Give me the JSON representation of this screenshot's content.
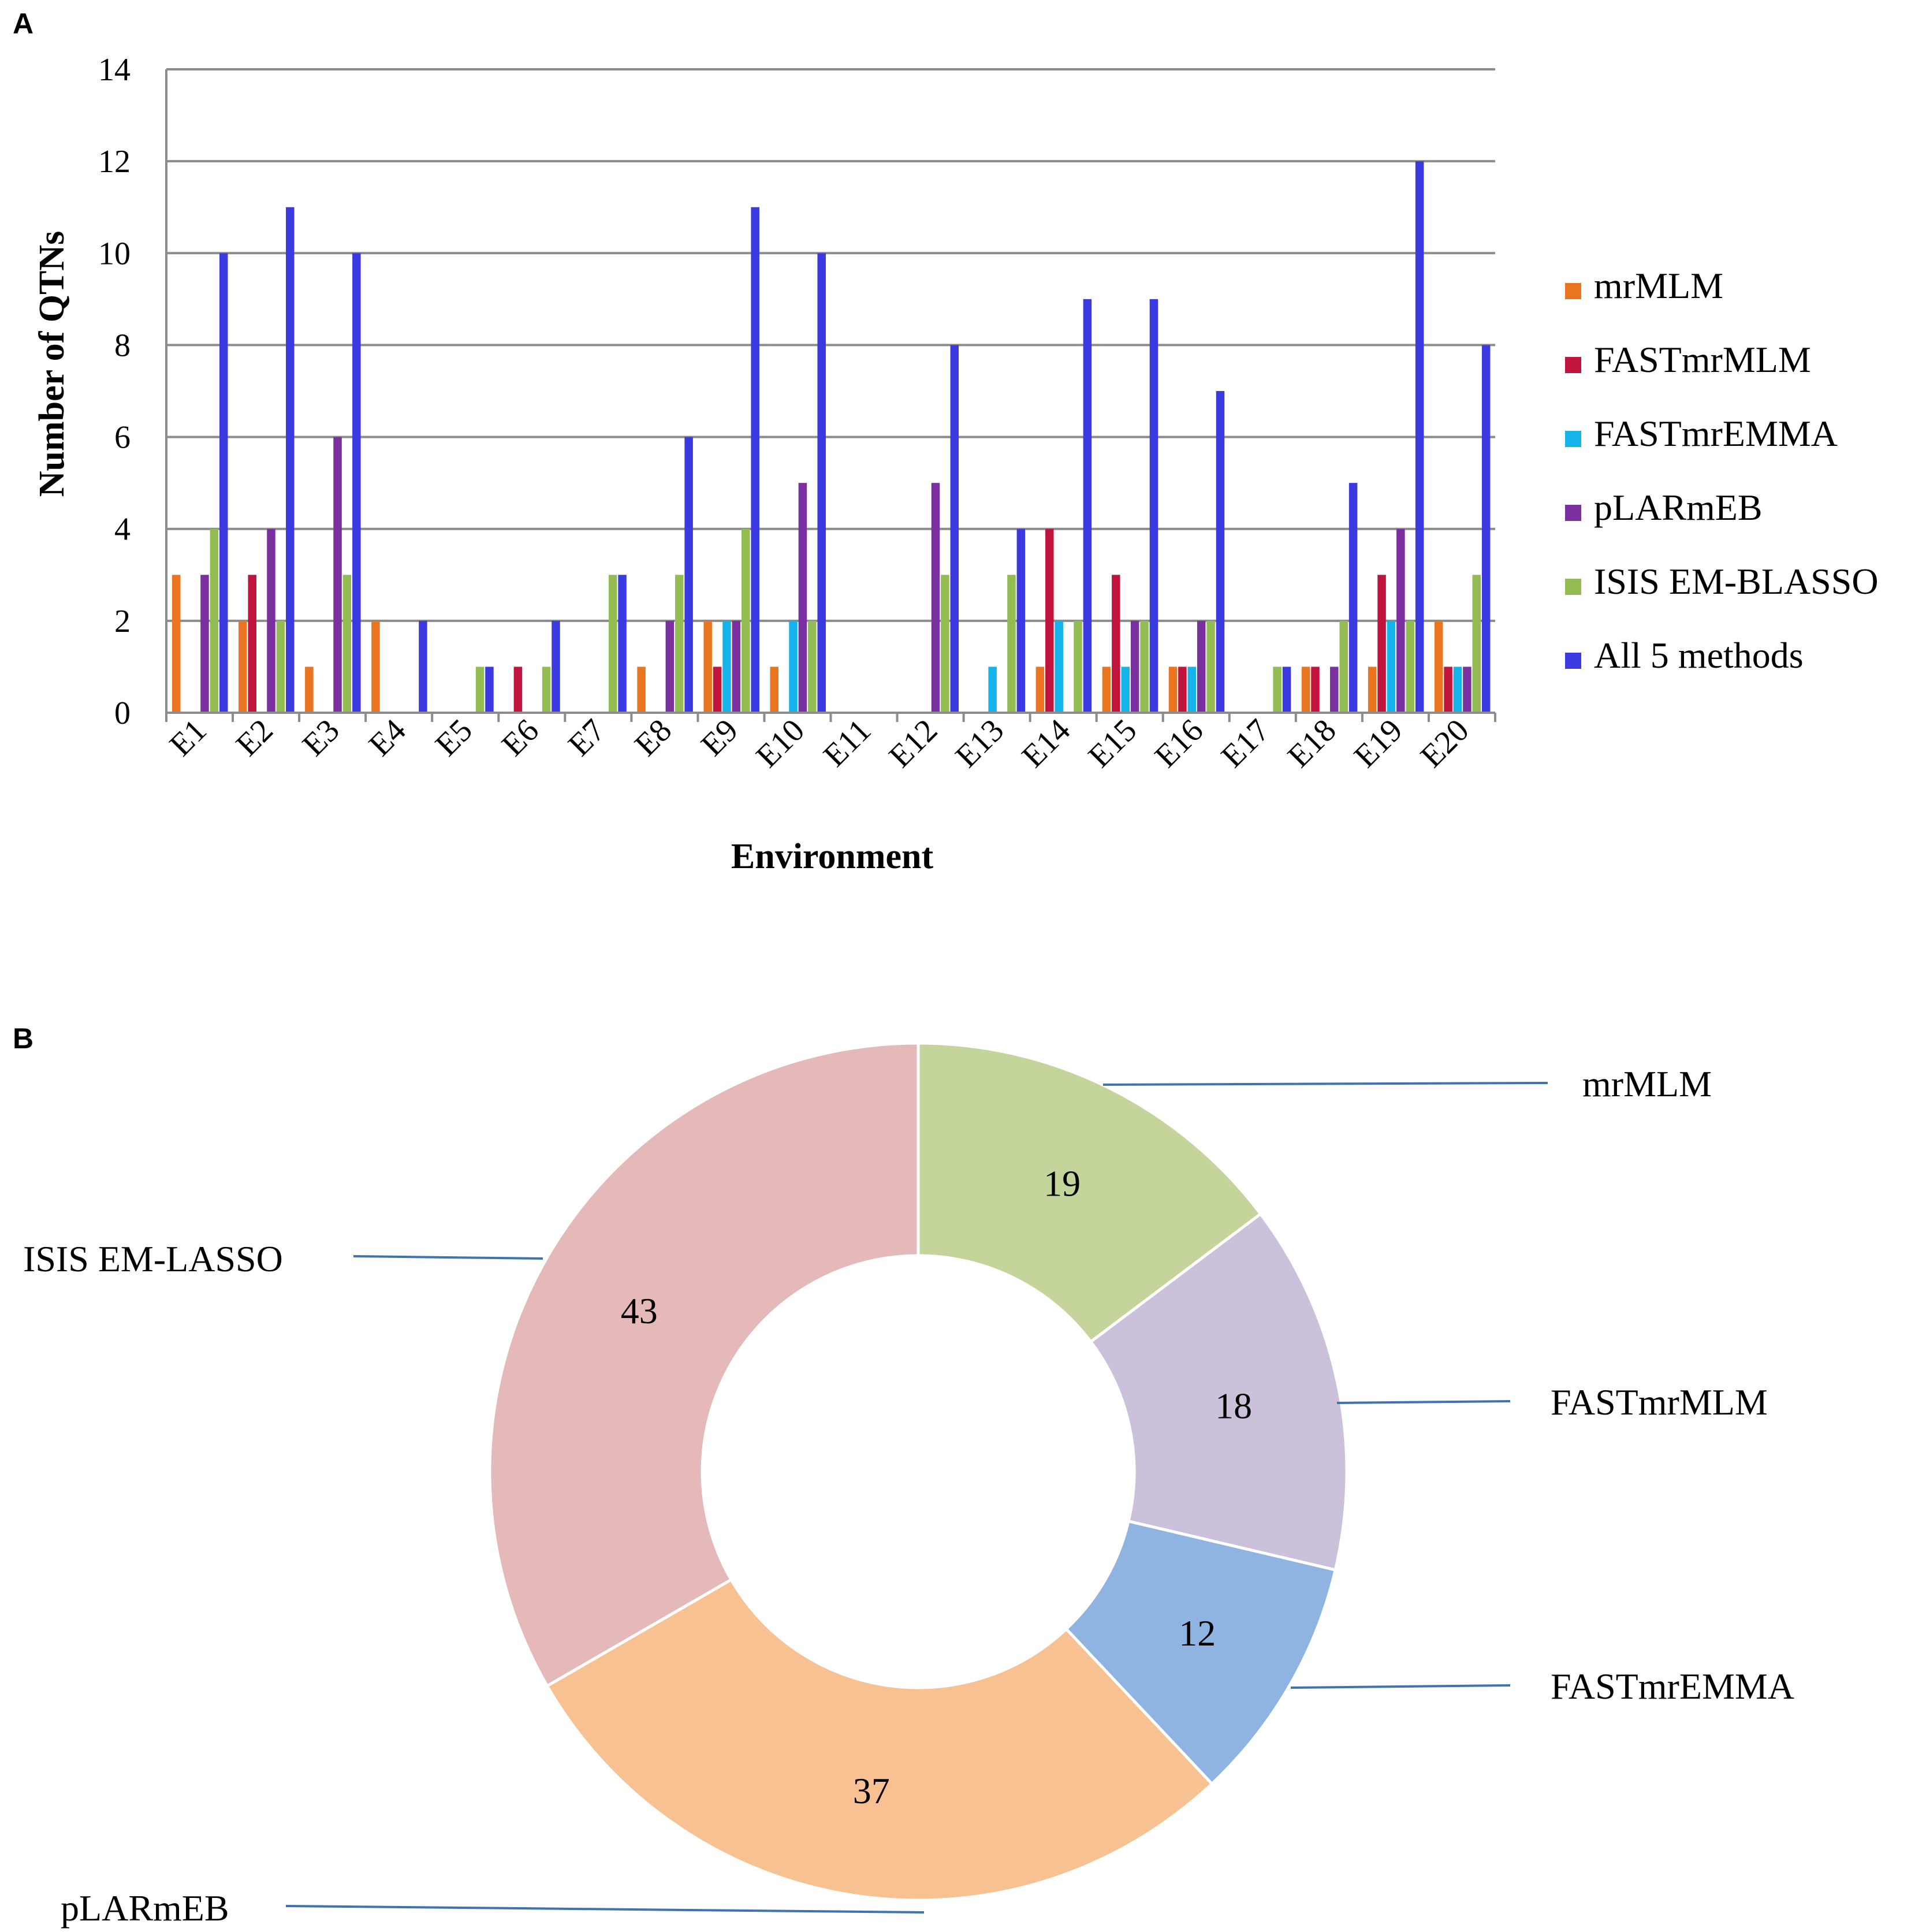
{
  "panels": {
    "a": "A",
    "b": "B"
  },
  "colors": {
    "mrMLM": "#e97520",
    "FASTmrMLM": "#c0143c",
    "FASTmrEMMA": "#14b4ea",
    "pLARmEB": "#7b309f",
    "ISIS EM-BLASSO": "#93bc52",
    "All 5 methods": "#3a3ae0",
    "grid": "#8c8c8c",
    "callout": "#3f74ad"
  },
  "chart_data": [
    {
      "type": "bar",
      "title": "",
      "xlabel": "Environment",
      "ylabel": "Number of QTNs",
      "ylim": [
        0,
        14
      ],
      "yticks": [
        "0",
        "2",
        "4",
        "6",
        "8",
        "10",
        "12",
        "14"
      ],
      "grid": true,
      "legend": "right",
      "categories": [
        "E1",
        "E2",
        "E3",
        "E4",
        "E5",
        "E6",
        "E7",
        "E8",
        "E9",
        "E10",
        "E11",
        "E12",
        "E13",
        "E14",
        "E15",
        "E16",
        "E17",
        "E18",
        "E19",
        "E20"
      ],
      "series": [
        {
          "name": "mrMLM",
          "values": [
            3,
            2,
            1,
            2,
            0,
            0,
            0,
            1,
            2,
            1,
            0,
            0,
            0,
            1,
            1,
            1,
            0,
            1,
            1,
            2
          ]
        },
        {
          "name": "FASTmrMLM",
          "values": [
            0,
            3,
            0,
            0,
            0,
            1,
            0,
            0,
            1,
            0,
            0,
            0,
            0,
            4,
            3,
            1,
            0,
            1,
            3,
            1
          ]
        },
        {
          "name": "FASTmrEMMA",
          "values": [
            0,
            0,
            0,
            0,
            0,
            0,
            0,
            0,
            2,
            2,
            0,
            0,
            1,
            2,
            1,
            1,
            0,
            0,
            2,
            1
          ]
        },
        {
          "name": "pLARmEB",
          "values": [
            3,
            4,
            6,
            0,
            0,
            0,
            0,
            2,
            2,
            5,
            0,
            5,
            0,
            0,
            2,
            2,
            0,
            1,
            4,
            1
          ]
        },
        {
          "name": "ISIS EM-BLASSO",
          "values": [
            4,
            2,
            3,
            0,
            1,
            1,
            3,
            3,
            4,
            2,
            0,
            3,
            3,
            2,
            2,
            2,
            1,
            2,
            2,
            3
          ]
        },
        {
          "name": "All 5 methods",
          "values": [
            10,
            11,
            10,
            2,
            1,
            2,
            3,
            6,
            11,
            10,
            0,
            8,
            4,
            9,
            9,
            7,
            1,
            5,
            12,
            8
          ]
        }
      ]
    },
    {
      "type": "pie",
      "subtype": "donut",
      "title": "",
      "slices": [
        {
          "label": "mrMLM",
          "value": 19,
          "color": "#c4d59b"
        },
        {
          "label": "FASTmrMLM",
          "value": 18,
          "color": "#cbc1db"
        },
        {
          "label": "FASTmrEMMA",
          "value": 12,
          "color": "#8fb4e1"
        },
        {
          "label": "pLARmEB",
          "value": 37,
          "color": "#f8c192"
        },
        {
          "label": "ISIS EM-LASSO",
          "value": 43,
          "color": "#e5b8b9"
        }
      ]
    }
  ]
}
